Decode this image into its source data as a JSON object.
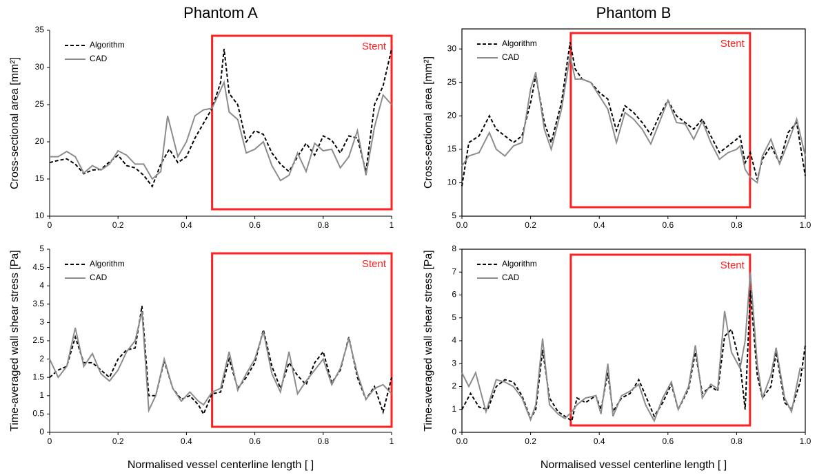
{
  "chart_data": [
    {
      "type": "line",
      "title": "Phantom A",
      "ylabel": "Cross-sectional area [mm²]",
      "frame": false,
      "xlim": [
        0,
        1
      ],
      "xticks": [
        0,
        0.2,
        0.4,
        0.6,
        0.8,
        1
      ],
      "ylim": [
        10,
        35
      ],
      "yticks": [
        10,
        15,
        20,
        25,
        30,
        35
      ],
      "annotation": {
        "text": "Stent",
        "color": "#ff2020",
        "x": [
          0.475,
          1
        ]
      },
      "series": [
        {
          "name": "Algorithm",
          "color": "#000000",
          "dashed": true,
          "x": [
            0,
            0.025,
            0.05,
            0.075,
            0.1,
            0.125,
            0.15,
            0.175,
            0.2,
            0.225,
            0.25,
            0.275,
            0.3,
            0.325,
            0.35,
            0.375,
            0.4,
            0.425,
            0.45,
            0.475,
            0.5,
            0.51,
            0.525,
            0.55,
            0.575,
            0.6,
            0.625,
            0.65,
            0.675,
            0.7,
            0.725,
            0.75,
            0.775,
            0.8,
            0.825,
            0.85,
            0.875,
            0.9,
            0.925,
            0.95,
            0.975,
            1
          ],
          "values": [
            17.2,
            17.5,
            17.7,
            17.0,
            15.7,
            16.2,
            16.3,
            17.3,
            18.2,
            16.8,
            16.5,
            15.5,
            14.0,
            17.0,
            19.0,
            17.2,
            18.0,
            20.5,
            22.5,
            24.5,
            28,
            32.5,
            26.5,
            25,
            20,
            21.5,
            21,
            18.5,
            17,
            16,
            18,
            19.8,
            18.2,
            20.8,
            20.2,
            18.5,
            20.8,
            20.5,
            16,
            25,
            27.5,
            32.5
          ]
        },
        {
          "name": "CAD",
          "color": "#8c8c8c",
          "dashed": false,
          "x": [
            0,
            0.025,
            0.05,
            0.075,
            0.1,
            0.125,
            0.15,
            0.175,
            0.2,
            0.225,
            0.25,
            0.275,
            0.3,
            0.325,
            0.345,
            0.375,
            0.4,
            0.425,
            0.45,
            0.475,
            0.5,
            0.51,
            0.525,
            0.55,
            0.575,
            0.6,
            0.625,
            0.65,
            0.675,
            0.7,
            0.725,
            0.75,
            0.775,
            0.8,
            0.825,
            0.85,
            0.875,
            0.9,
            0.925,
            0.95,
            0.975,
            1
          ],
          "values": [
            18,
            18,
            18.7,
            18,
            15.8,
            16.8,
            16.2,
            17,
            18.8,
            18.2,
            17,
            17,
            15,
            16,
            23.5,
            18,
            20,
            23.5,
            24.3,
            24.5,
            27,
            28,
            24,
            23,
            18.5,
            19,
            20,
            16.8,
            14.8,
            15.5,
            18.5,
            16,
            19.8,
            18.8,
            19,
            16.5,
            18,
            21.5,
            15.5,
            22,
            26.3,
            25
          ]
        }
      ]
    },
    {
      "type": "line",
      "title": "Phantom B",
      "ylabel": "Cross-sectional area [mm²]",
      "frame": true,
      "xlim": [
        0,
        1
      ],
      "xticks": [
        {
          "value": 0,
          "label": "0.0"
        },
        0.2,
        0.4,
        0.6,
        0.8,
        {
          "value": 1,
          "label": "1.0"
        }
      ],
      "ylim": [
        5,
        33
      ],
      "yticks": [
        5,
        10,
        15,
        20,
        25,
        30
      ],
      "annotation": {
        "text": "Stent",
        "color": "#ff2020",
        "x": [
          0.317,
          0.839
        ]
      },
      "series": [
        {
          "name": "Algorithm",
          "color": "#000000",
          "dashed": true,
          "x": [
            0,
            0.02,
            0.05,
            0.08,
            0.1,
            0.125,
            0.15,
            0.175,
            0.2,
            0.215,
            0.24,
            0.26,
            0.29,
            0.315,
            0.33,
            0.35,
            0.375,
            0.4,
            0.425,
            0.45,
            0.475,
            0.5,
            0.525,
            0.55,
            0.575,
            0.6,
            0.625,
            0.65,
            0.675,
            0.7,
            0.725,
            0.75,
            0.775,
            0.8,
            0.81,
            0.825,
            0.84,
            0.86,
            0.875,
            0.9,
            0.925,
            0.95,
            0.975,
            1
          ],
          "values": [
            9.5,
            16,
            17,
            20,
            18,
            17,
            16,
            17,
            22,
            26,
            19,
            16,
            22,
            31,
            27,
            25.5,
            25,
            23.5,
            22.5,
            17.8,
            21.5,
            20.5,
            19,
            17.2,
            20,
            22.3,
            20,
            19,
            18,
            19.5,
            17,
            14.5,
            15.5,
            16.5,
            17,
            13,
            14.5,
            10.5,
            13.5,
            15.5,
            13,
            17.5,
            19,
            11
          ]
        },
        {
          "name": "CAD",
          "color": "#8c8c8c",
          "dashed": false,
          "x": [
            0,
            0.02,
            0.05,
            0.08,
            0.1,
            0.125,
            0.15,
            0.175,
            0.2,
            0.215,
            0.24,
            0.26,
            0.29,
            0.315,
            0.33,
            0.35,
            0.375,
            0.4,
            0.425,
            0.45,
            0.475,
            0.5,
            0.525,
            0.55,
            0.575,
            0.6,
            0.625,
            0.65,
            0.675,
            0.7,
            0.725,
            0.75,
            0.775,
            0.8,
            0.81,
            0.825,
            0.84,
            0.86,
            0.875,
            0.9,
            0.925,
            0.95,
            0.975,
            1
          ],
          "values": [
            12.5,
            14,
            14.5,
            17.5,
            15,
            14,
            15.5,
            16,
            24,
            26.5,
            18,
            15,
            21,
            29,
            25.5,
            25.5,
            25,
            23,
            21,
            16,
            20.5,
            19.5,
            18,
            15.8,
            19,
            22.3,
            19,
            18.8,
            16.5,
            19.2,
            16,
            13.5,
            14.5,
            15,
            15.5,
            12,
            10.8,
            10,
            14,
            16.5,
            12.8,
            16,
            19.5,
            14
          ]
        }
      ]
    },
    {
      "type": "line",
      "ylabel": "Time-averaged wall shear stress [Pa]",
      "xlabel": "Normalised vessel centerline length [ ]",
      "frame": false,
      "xlim": [
        0,
        1
      ],
      "xticks": [
        0,
        0.2,
        0.4,
        0.6,
        0.8,
        1
      ],
      "ylim": [
        0,
        5
      ],
      "yticks": [
        0,
        0.5,
        1,
        1.5,
        2,
        2.5,
        3,
        3.5,
        4,
        4.5,
        5
      ],
      "annotation": {
        "text": "Stent",
        "color": "#ff2020",
        "x": [
          0.475,
          1
        ]
      },
      "series": [
        {
          "name": "Algorithm",
          "color": "#000000",
          "dashed": true,
          "x": [
            0,
            0.025,
            0.05,
            0.075,
            0.1,
            0.125,
            0.15,
            0.175,
            0.2,
            0.225,
            0.25,
            0.27,
            0.29,
            0.31,
            0.335,
            0.36,
            0.385,
            0.41,
            0.435,
            0.45,
            0.475,
            0.5,
            0.525,
            0.55,
            0.575,
            0.6,
            0.625,
            0.65,
            0.675,
            0.7,
            0.725,
            0.75,
            0.775,
            0.8,
            0.825,
            0.85,
            0.875,
            0.9,
            0.925,
            0.95,
            0.975,
            1
          ],
          "values": [
            1.5,
            1.7,
            1.8,
            2.6,
            1.9,
            1.9,
            1.7,
            1.5,
            2.0,
            2.25,
            2.3,
            3.45,
            1.0,
            1.0,
            1.95,
            1.2,
            0.9,
            1.0,
            0.75,
            0.5,
            1.05,
            1.1,
            2.0,
            1.2,
            1.5,
            1.9,
            2.8,
            1.8,
            1.2,
            1.9,
            1.55,
            1.3,
            1.9,
            2.2,
            1.35,
            1.7,
            2.6,
            1.5,
            0.9,
            1.25,
            0.55,
            1.5
          ]
        },
        {
          "name": "CAD",
          "color": "#8c8c8c",
          "dashed": false,
          "x": [
            0,
            0.025,
            0.05,
            0.075,
            0.1,
            0.125,
            0.15,
            0.175,
            0.2,
            0.225,
            0.25,
            0.27,
            0.29,
            0.31,
            0.335,
            0.36,
            0.385,
            0.41,
            0.435,
            0.45,
            0.475,
            0.5,
            0.525,
            0.55,
            0.575,
            0.6,
            0.625,
            0.65,
            0.675,
            0.7,
            0.725,
            0.75,
            0.775,
            0.8,
            0.825,
            0.85,
            0.875,
            0.9,
            0.925,
            0.95,
            0.975,
            1
          ],
          "values": [
            2.0,
            1.5,
            1.8,
            2.85,
            1.8,
            2.15,
            1.6,
            1.4,
            1.7,
            2.2,
            2.5,
            3.3,
            0.6,
            1.0,
            2.0,
            1.2,
            0.85,
            1.1,
            0.85,
            0.75,
            1.1,
            1.2,
            2.2,
            1.15,
            1.6,
            2.0,
            2.75,
            1.6,
            1.1,
            2.2,
            1.05,
            1.4,
            1.7,
            2.0,
            1.3,
            1.75,
            2.55,
            1.6,
            0.9,
            1.2,
            1.3,
            1.05
          ]
        }
      ]
    },
    {
      "type": "line",
      "ylabel": "Time-averaged wall shear stress [Pa]",
      "xlabel": "Normalised vessel centerline length [ ]",
      "frame": true,
      "xlim": [
        0,
        1
      ],
      "xticks": [
        {
          "value": 0,
          "label": "0.0"
        },
        0.2,
        0.4,
        0.6,
        0.8,
        {
          "value": 1,
          "label": "1.0"
        }
      ],
      "ylim": [
        0,
        8
      ],
      "yticks": [
        0,
        1,
        2,
        3,
        4,
        5,
        6,
        7,
        8
      ],
      "annotation": {
        "text": "Stent",
        "color": "#ff2020",
        "x": [
          0.317,
          0.839
        ]
      },
      "series": [
        {
          "name": "Algorithm",
          "color": "#000000",
          "dashed": true,
          "x": [
            0,
            0.025,
            0.05,
            0.075,
            0.1,
            0.125,
            0.15,
            0.175,
            0.2,
            0.215,
            0.235,
            0.255,
            0.28,
            0.3,
            0.32,
            0.335,
            0.36,
            0.39,
            0.405,
            0.425,
            0.44,
            0.465,
            0.49,
            0.515,
            0.535,
            0.56,
            0.585,
            0.61,
            0.63,
            0.66,
            0.68,
            0.7,
            0.725,
            0.745,
            0.765,
            0.785,
            0.81,
            0.825,
            0.84,
            0.86,
            0.875,
            0.9,
            0.915,
            0.94,
            0.96,
            0.985,
            1
          ],
          "values": [
            1.0,
            1.7,
            1.1,
            1.0,
            2.0,
            2.3,
            2.2,
            1.6,
            0.6,
            1.0,
            3.6,
            1.5,
            0.9,
            0.7,
            0.5,
            1.5,
            1.3,
            1.6,
            1.0,
            2.6,
            0.9,
            1.5,
            1.7,
            2.3,
            1.6,
            0.7,
            1.3,
            2.1,
            1.0,
            1.9,
            3.5,
            1.7,
            2.0,
            1.8,
            4.2,
            4.5,
            3.0,
            1.0,
            6.2,
            2.5,
            1.5,
            2.0,
            3.5,
            1.3,
            1.0,
            2.2,
            3.8
          ]
        },
        {
          "name": "CAD",
          "color": "#8c8c8c",
          "dashed": false,
          "x": [
            0,
            0.02,
            0.04,
            0.07,
            0.1,
            0.125,
            0.15,
            0.175,
            0.2,
            0.215,
            0.235,
            0.255,
            0.28,
            0.3,
            0.32,
            0.335,
            0.36,
            0.39,
            0.405,
            0.425,
            0.44,
            0.465,
            0.49,
            0.515,
            0.535,
            0.56,
            0.585,
            0.61,
            0.63,
            0.66,
            0.68,
            0.7,
            0.725,
            0.745,
            0.765,
            0.785,
            0.81,
            0.825,
            0.84,
            0.86,
            0.875,
            0.9,
            0.915,
            0.94,
            0.96,
            0.985,
            1
          ],
          "values": [
            2.6,
            2.0,
            2.6,
            0.9,
            2.3,
            2.2,
            2.0,
            1.5,
            0.55,
            1.2,
            4.1,
            1.2,
            0.8,
            0.6,
            0.9,
            1.2,
            1.5,
            1.6,
            0.8,
            3.0,
            0.7,
            1.6,
            1.8,
            2.1,
            1.2,
            0.5,
            1.5,
            2.2,
            1.0,
            2.0,
            3.8,
            1.5,
            2.1,
            1.9,
            5.3,
            3.5,
            2.8,
            4.0,
            7.0,
            3.0,
            1.5,
            2.5,
            3.7,
            1.5,
            0.9,
            2.8,
            2.8
          ]
        }
      ]
    }
  ]
}
